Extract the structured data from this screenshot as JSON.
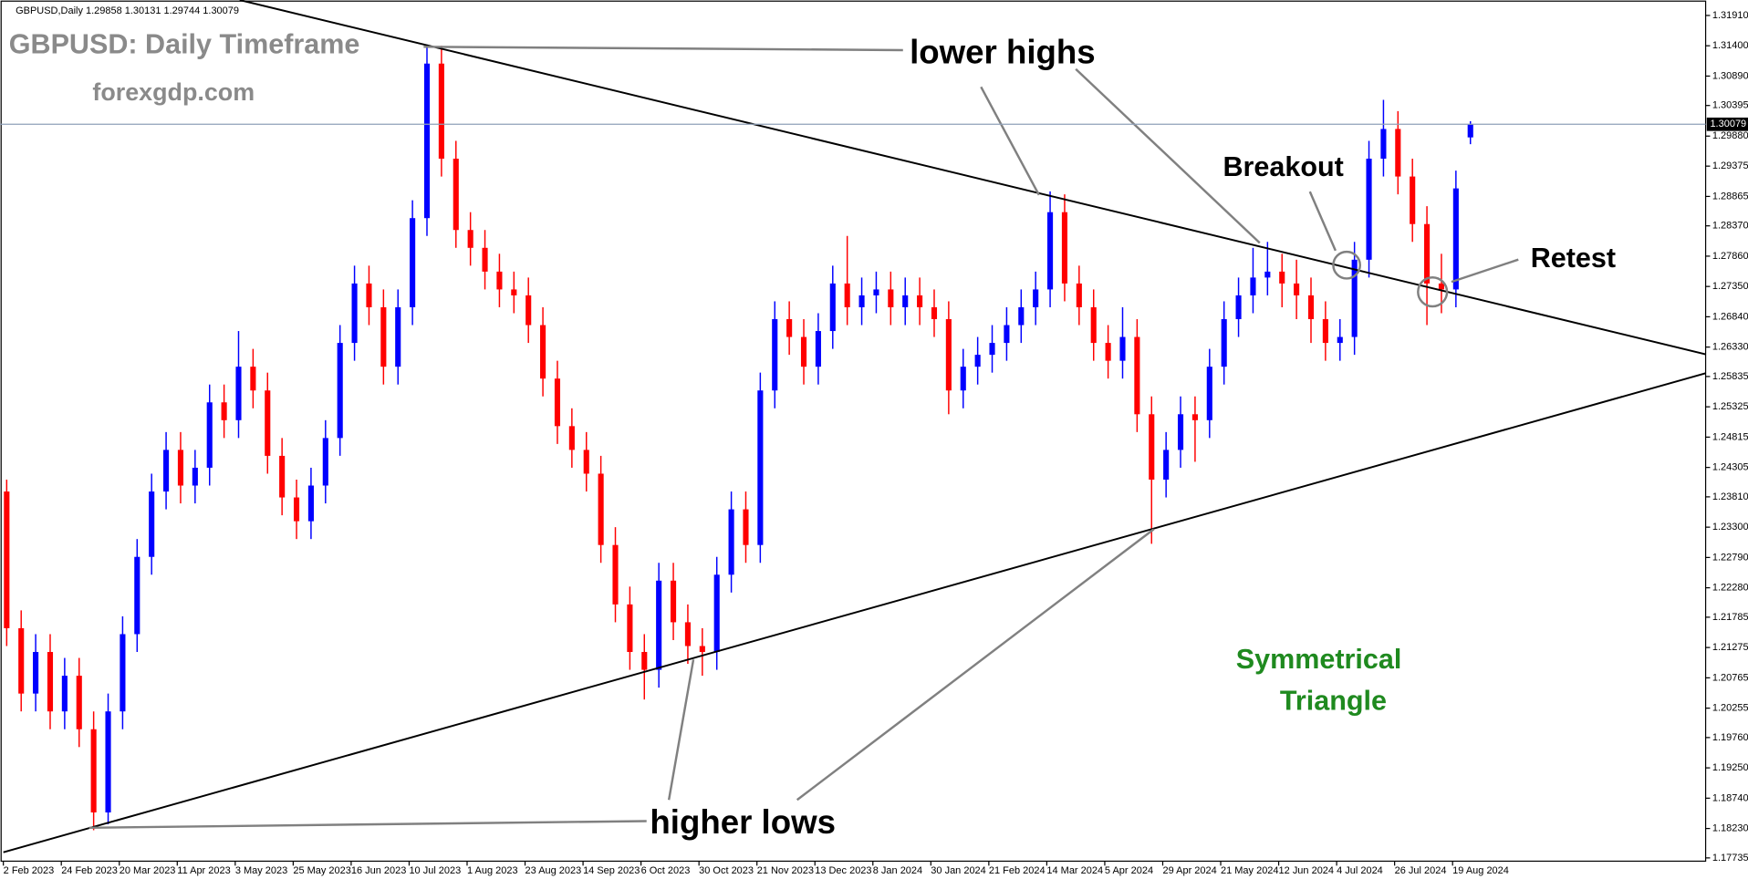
{
  "chart_data": {
    "type": "candlestick",
    "header": "GBPUSD,Daily  1.29858 1.30131 1.29744 1.30079",
    "title": "GBPUSD: Daily Timeframe",
    "subtitle": "forexgdp.com",
    "annotations": [
      "lower highs",
      "higher lows",
      "Breakout",
      "Retest",
      "Symmetrical",
      "Triangle"
    ],
    "categories": [
      "2 Feb 2023",
      null,
      null,
      null,
      "24 Feb 2023",
      null,
      null,
      null,
      "20 Mar 2023",
      null,
      null,
      null,
      "11 Apr 2023",
      null,
      null,
      null,
      "3 May 2023",
      null,
      null,
      null,
      "25 May 2023",
      null,
      null,
      null,
      "16 Jun 2023",
      null,
      null,
      null,
      "10 Jul 2023",
      null,
      null,
      null,
      "1 Aug 2023",
      null,
      null,
      null,
      "23 Aug 2023",
      null,
      null,
      null,
      "14 Sep 2023",
      null,
      null,
      null,
      "6 Oct 2023",
      null,
      null,
      null,
      "30 Oct 2023",
      null,
      null,
      null,
      "21 Nov 2023",
      null,
      null,
      null,
      "13 Dec 2023",
      null,
      null,
      null,
      "8 Jan 2024",
      null,
      null,
      null,
      "30 Jan 2024",
      null,
      null,
      null,
      "21 Feb 2024",
      null,
      null,
      null,
      "14 Mar 2024",
      null,
      null,
      null,
      "5 Apr 2024",
      null,
      null,
      null,
      "29 Apr 2024",
      null,
      null,
      null,
      "21 May 2024",
      null,
      null,
      null,
      "12 Jun 2024",
      null,
      null,
      null,
      "4 Jul 2024",
      null,
      null,
      null,
      "26 Jul 2024",
      null,
      null,
      null,
      "19 Aug 2024",
      null
    ],
    "open": [
      1.239,
      1.216,
      1.205,
      1.212,
      1.202,
      1.208,
      1.199,
      1.185,
      1.202,
      1.215,
      1.228,
      1.239,
      1.246,
      1.24,
      1.243,
      1.254,
      1.251,
      1.26,
      1.256,
      1.245,
      1.238,
      1.234,
      1.24,
      1.248,
      1.264,
      1.274,
      1.27,
      1.26,
      1.27,
      1.285,
      1.311,
      1.295,
      1.283,
      1.28,
      1.276,
      1.273,
      1.272,
      1.267,
      1.258,
      1.25,
      1.246,
      1.242,
      1.23,
      1.22,
      1.212,
      1.209,
      1.224,
      1.217,
      1.213,
      1.212,
      1.225,
      1.236,
      1.23,
      1.256,
      1.268,
      1.265,
      1.26,
      1.266,
      1.274,
      1.27,
      1.272,
      1.273,
      1.27,
      1.272,
      1.27,
      1.268,
      1.256,
      1.26,
      1.262,
      1.264,
      1.267,
      1.27,
      1.273,
      1.286,
      1.274,
      1.27,
      1.264,
      1.261,
      1.265,
      1.252,
      1.241,
      1.246,
      1.252,
      1.251,
      1.26,
      1.268,
      1.272,
      1.275,
      1.276,
      1.274,
      1.272,
      1.268,
      1.264,
      1.265,
      1.278,
      1.295,
      1.3,
      1.292,
      1.284,
      1.274,
      1.273,
      1.29858
    ],
    "high": [
      1.241,
      1.219,
      1.215,
      1.215,
      1.211,
      1.211,
      1.202,
      1.205,
      1.218,
      1.231,
      1.242,
      1.249,
      1.249,
      1.246,
      1.257,
      1.257,
      1.266,
      1.263,
      1.259,
      1.248,
      1.241,
      1.243,
      1.251,
      1.267,
      1.277,
      1.277,
      1.273,
      1.273,
      1.288,
      1.3142,
      1.314,
      1.298,
      1.286,
      1.283,
      1.279,
      1.276,
      1.275,
      1.27,
      1.261,
      1.253,
      1.249,
      1.245,
      1.233,
      1.223,
      1.215,
      1.227,
      1.227,
      1.22,
      1.216,
      1.228,
      1.239,
      1.239,
      1.259,
      1.271,
      1.271,
      1.268,
      1.269,
      1.277,
      1.282,
      1.275,
      1.276,
      1.276,
      1.275,
      1.275,
      1.273,
      1.271,
      1.263,
      1.265,
      1.267,
      1.27,
      1.273,
      1.276,
      1.2895,
      1.289,
      1.277,
      1.273,
      1.267,
      1.27,
      1.268,
      1.255,
      1.249,
      1.255,
      1.255,
      1.263,
      1.271,
      1.275,
      1.28,
      1.281,
      1.279,
      1.278,
      1.275,
      1.271,
      1.268,
      1.281,
      1.298,
      1.3049,
      1.303,
      1.295,
      1.287,
      1.279,
      1.293,
      1.30131
    ],
    "low": [
      1.213,
      1.202,
      1.202,
      1.199,
      1.199,
      1.196,
      1.182,
      1.183,
      1.199,
      1.212,
      1.225,
      1.236,
      1.237,
      1.237,
      1.24,
      1.248,
      1.248,
      1.253,
      1.242,
      1.235,
      1.231,
      1.231,
      1.237,
      1.245,
      1.261,
      1.267,
      1.257,
      1.257,
      1.267,
      1.282,
      1.292,
      1.28,
      1.277,
      1.273,
      1.27,
      1.269,
      1.264,
      1.255,
      1.247,
      1.243,
      1.239,
      1.227,
      1.217,
      1.209,
      1.204,
      1.206,
      1.214,
      1.21,
      1.208,
      1.209,
      1.222,
      1.227,
      1.227,
      1.253,
      1.262,
      1.257,
      1.257,
      1.263,
      1.267,
      1.267,
      1.269,
      1.267,
      1.267,
      1.267,
      1.265,
      1.252,
      1.253,
      1.257,
      1.259,
      1.261,
      1.264,
      1.267,
      1.27,
      1.271,
      1.267,
      1.261,
      1.258,
      1.258,
      1.249,
      1.2302,
      1.238,
      1.243,
      1.244,
      1.248,
      1.257,
      1.265,
      1.269,
      1.272,
      1.27,
      1.268,
      1.264,
      1.261,
      1.261,
      1.262,
      1.275,
      1.292,
      1.289,
      1.281,
      1.267,
      1.269,
      1.27,
      1.29744
    ],
    "close": [
      1.216,
      1.205,
      1.212,
      1.202,
      1.208,
      1.199,
      1.185,
      1.202,
      1.215,
      1.228,
      1.239,
      1.246,
      1.24,
      1.243,
      1.254,
      1.251,
      1.26,
      1.256,
      1.245,
      1.238,
      1.234,
      1.24,
      1.248,
      1.264,
      1.274,
      1.27,
      1.26,
      1.27,
      1.285,
      1.311,
      1.295,
      1.283,
      1.28,
      1.276,
      1.273,
      1.272,
      1.267,
      1.258,
      1.25,
      1.246,
      1.242,
      1.23,
      1.22,
      1.212,
      1.209,
      1.224,
      1.217,
      1.213,
      1.212,
      1.225,
      1.236,
      1.23,
      1.256,
      1.268,
      1.265,
      1.26,
      1.266,
      1.274,
      1.27,
      1.272,
      1.273,
      1.27,
      1.272,
      1.27,
      1.268,
      1.256,
      1.26,
      1.262,
      1.264,
      1.267,
      1.27,
      1.273,
      1.286,
      1.274,
      1.27,
      1.264,
      1.261,
      1.265,
      1.252,
      1.241,
      1.246,
      1.252,
      1.251,
      1.26,
      1.268,
      1.272,
      1.275,
      1.276,
      1.274,
      1.272,
      1.268,
      1.264,
      1.265,
      1.278,
      1.295,
      1.3,
      1.292,
      1.284,
      1.274,
      1.273,
      1.29,
      1.30079
    ],
    "up_color": "#0000ff",
    "down_color": "#ff0000",
    "current_price": {
      "value": 1.30079,
      "label": "1.30079"
    },
    "ylim": [
      1.1768,
      1.3217
    ],
    "yticks": [
      {
        "value": 1.3191,
        "label": "1.31910"
      },
      {
        "value": 1.314,
        "label": "1.31400"
      },
      {
        "value": 1.3089,
        "label": "1.30890"
      },
      {
        "value": 1.30395,
        "label": "1.30395"
      },
      {
        "value": 1.2988,
        "label": "1.29880"
      },
      {
        "value": 1.29375,
        "label": "1.29375"
      },
      {
        "value": 1.28865,
        "label": "1.28865"
      },
      {
        "value": 1.2837,
        "label": "1.28370"
      },
      {
        "value": 1.2786,
        "label": "1.27860"
      },
      {
        "value": 1.2735,
        "label": "1.27350"
      },
      {
        "value": 1.2684,
        "label": "1.26840"
      },
      {
        "value": 1.2633,
        "label": "1.26330"
      },
      {
        "value": 1.25835,
        "label": "1.25835"
      },
      {
        "value": 1.25325,
        "label": "1.25325"
      },
      {
        "value": 1.24815,
        "label": "1.24815"
      },
      {
        "value": 1.24305,
        "label": "1.24305"
      },
      {
        "value": 1.2381,
        "label": "1.23810"
      },
      {
        "value": 1.233,
        "label": "1.23300"
      },
      {
        "value": 1.2279,
        "label": "1.22790"
      },
      {
        "value": 1.2228,
        "label": "1.22280"
      },
      {
        "value": 1.21785,
        "label": "1.21785"
      },
      {
        "value": 1.21275,
        "label": "1.21275"
      },
      {
        "value": 1.20765,
        "label": "1.20765"
      },
      {
        "value": 1.20255,
        "label": "1.20255"
      },
      {
        "value": 1.1976,
        "label": "1.19760"
      },
      {
        "value": 1.1925,
        "label": "1.19250"
      },
      {
        "value": 1.1874,
        "label": "1.18740"
      },
      {
        "value": 1.1823,
        "label": "1.18230"
      },
      {
        "value": 1.17735,
        "label": "1.17735"
      }
    ]
  }
}
